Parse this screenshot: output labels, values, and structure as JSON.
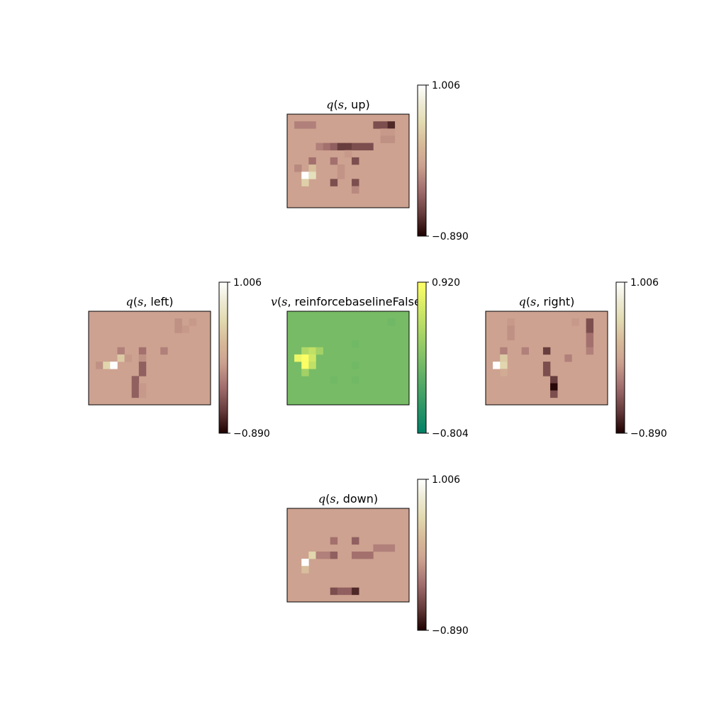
{
  "chart_data": {
    "type": "heatmap",
    "panels": [
      {
        "id": "up",
        "title": {
          "func": "q",
          "var": "s",
          "arg": "up"
        },
        "colormap": "pink",
        "colorbar": {
          "max_label": "1.006",
          "min_label": "−0.890",
          "vmin": -0.89,
          "vmax": 1.006
        },
        "rows": 13,
        "cols": 17,
        "background_value": 0.0,
        "cells": [
          {
            "r": 1,
            "c": 1,
            "v": -0.2
          },
          {
            "r": 1,
            "c": 2,
            "v": -0.2
          },
          {
            "r": 1,
            "c": 3,
            "v": -0.2
          },
          {
            "r": 1,
            "c": 12,
            "v": -0.5
          },
          {
            "r": 1,
            "c": 13,
            "v": -0.5
          },
          {
            "r": 1,
            "c": 14,
            "v": -0.7
          },
          {
            "r": 2,
            "c": 13,
            "v": -0.05
          },
          {
            "r": 2,
            "c": 14,
            "v": -0.05
          },
          {
            "r": 3,
            "c": 13,
            "v": -0.1
          },
          {
            "r": 3,
            "c": 14,
            "v": -0.1
          },
          {
            "r": 4,
            "c": 4,
            "v": -0.2
          },
          {
            "r": 4,
            "c": 5,
            "v": -0.3
          },
          {
            "r": 4,
            "c": 6,
            "v": -0.4
          },
          {
            "r": 4,
            "c": 7,
            "v": -0.6
          },
          {
            "r": 4,
            "c": 8,
            "v": -0.6
          },
          {
            "r": 4,
            "c": 9,
            "v": -0.5
          },
          {
            "r": 4,
            "c": 10,
            "v": -0.5
          },
          {
            "r": 4,
            "c": 11,
            "v": -0.5
          },
          {
            "r": 5,
            "c": 8,
            "v": -0.05
          },
          {
            "r": 6,
            "c": 3,
            "v": -0.3
          },
          {
            "r": 6,
            "c": 6,
            "v": -0.3
          },
          {
            "r": 6,
            "c": 9,
            "v": -0.5
          },
          {
            "r": 7,
            "c": 1,
            "v": -0.15
          },
          {
            "r": 7,
            "c": 3,
            "v": 0.3
          },
          {
            "r": 7,
            "c": 7,
            "v": -0.08
          },
          {
            "r": 8,
            "c": 2,
            "v": 1.0
          },
          {
            "r": 8,
            "c": 3,
            "v": 0.6
          },
          {
            "r": 8,
            "c": 7,
            "v": -0.08
          },
          {
            "r": 9,
            "c": 2,
            "v": 0.45
          },
          {
            "r": 9,
            "c": 6,
            "v": -0.5
          },
          {
            "r": 9,
            "c": 9,
            "v": -0.5
          },
          {
            "r": 10,
            "c": 9,
            "v": -0.15
          }
        ]
      },
      {
        "id": "left",
        "title": {
          "func": "q",
          "var": "s",
          "arg": "left"
        },
        "colormap": "pink",
        "colorbar": {
          "max_label": "1.006",
          "min_label": "−0.890",
          "vmin": -0.89,
          "vmax": 1.006
        },
        "rows": 13,
        "cols": 17,
        "background_value": 0.0,
        "cells": [
          {
            "r": 1,
            "c": 12,
            "v": -0.1
          },
          {
            "r": 1,
            "c": 14,
            "v": -0.05
          },
          {
            "r": 2,
            "c": 12,
            "v": -0.1
          },
          {
            "r": 2,
            "c": 13,
            "v": -0.05
          },
          {
            "r": 5,
            "c": 4,
            "v": -0.2
          },
          {
            "r": 5,
            "c": 7,
            "v": -0.3
          },
          {
            "r": 5,
            "c": 10,
            "v": -0.2
          },
          {
            "r": 6,
            "c": 4,
            "v": 0.4
          },
          {
            "r": 6,
            "c": 5,
            "v": -0.05
          },
          {
            "r": 6,
            "c": 7,
            "v": -0.1
          },
          {
            "r": 7,
            "c": 1,
            "v": -0.1
          },
          {
            "r": 7,
            "c": 2,
            "v": 0.5
          },
          {
            "r": 7,
            "c": 3,
            "v": 1.0
          },
          {
            "r": 7,
            "c": 7,
            "v": -0.4
          },
          {
            "r": 8,
            "c": 7,
            "v": -0.4
          },
          {
            "r": 9,
            "c": 6,
            "v": -0.4
          },
          {
            "r": 10,
            "c": 6,
            "v": -0.4
          },
          {
            "r": 11,
            "c": 6,
            "v": -0.4
          },
          {
            "r": 10,
            "c": 7,
            "v": -0.05
          },
          {
            "r": 11,
            "c": 7,
            "v": -0.05
          }
        ]
      },
      {
        "id": "value",
        "title": {
          "func": "v",
          "var": "s",
          "arg": "reinforcebaselineFalse"
        },
        "colormap": "summer",
        "colorbar": {
          "max_label": "0.920",
          "min_label": "−0.804",
          "vmin": -0.804,
          "vmax": 0.92
        },
        "rows": 13,
        "cols": 17,
        "background_value": 0.0,
        "cells": [
          {
            "r": 1,
            "c": 14,
            "v": -0.05
          },
          {
            "r": 5,
            "c": 2,
            "v": 0.4
          },
          {
            "r": 5,
            "c": 3,
            "v": 0.5
          },
          {
            "r": 5,
            "c": 4,
            "v": 0.3
          },
          {
            "r": 6,
            "c": 1,
            "v": 0.8
          },
          {
            "r": 6,
            "c": 2,
            "v": 0.9
          },
          {
            "r": 6,
            "c": 3,
            "v": 0.6
          },
          {
            "r": 7,
            "c": 2,
            "v": 0.9
          },
          {
            "r": 7,
            "c": 3,
            "v": 0.5
          },
          {
            "r": 8,
            "c": 2,
            "v": 0.3
          },
          {
            "r": 4,
            "c": 9,
            "v": -0.03
          },
          {
            "r": 7,
            "c": 9,
            "v": -0.03
          },
          {
            "r": 9,
            "c": 6,
            "v": -0.03
          },
          {
            "r": 9,
            "c": 9,
            "v": -0.03
          }
        ]
      },
      {
        "id": "right",
        "title": {
          "func": "q",
          "var": "s",
          "arg": "right"
        },
        "colormap": "pink",
        "colorbar": {
          "max_label": "1.006",
          "min_label": "−0.890",
          "vmin": -0.89,
          "vmax": 1.006
        },
        "rows": 13,
        "cols": 17,
        "background_value": 0.0,
        "cells": [
          {
            "r": 1,
            "c": 3,
            "v": -0.05
          },
          {
            "r": 1,
            "c": 12,
            "v": -0.05
          },
          {
            "r": 1,
            "c": 14,
            "v": -0.5
          },
          {
            "r": 2,
            "c": 3,
            "v": -0.1
          },
          {
            "r": 2,
            "c": 14,
            "v": -0.5
          },
          {
            "r": 3,
            "c": 3,
            "v": -0.1
          },
          {
            "r": 3,
            "c": 14,
            "v": -0.3
          },
          {
            "r": 4,
            "c": 14,
            "v": -0.3
          },
          {
            "r": 5,
            "c": 2,
            "v": -0.2
          },
          {
            "r": 5,
            "c": 5,
            "v": -0.2
          },
          {
            "r": 5,
            "c": 8,
            "v": -0.6
          },
          {
            "r": 5,
            "c": 14,
            "v": -0.2
          },
          {
            "r": 6,
            "c": 2,
            "v": 0.4
          },
          {
            "r": 6,
            "c": 11,
            "v": -0.2
          },
          {
            "r": 7,
            "c": 1,
            "v": 1.0
          },
          {
            "r": 7,
            "c": 2,
            "v": 0.5
          },
          {
            "r": 7,
            "c": 8,
            "v": -0.5
          },
          {
            "r": 8,
            "c": 2,
            "v": 0.1
          },
          {
            "r": 8,
            "c": 8,
            "v": -0.5
          },
          {
            "r": 9,
            "c": 9,
            "v": -0.6
          },
          {
            "r": 10,
            "c": 9,
            "v": -0.85
          },
          {
            "r": 11,
            "c": 9,
            "v": -0.5
          }
        ]
      },
      {
        "id": "down",
        "title": {
          "func": "q",
          "var": "s",
          "arg": "down"
        },
        "colormap": "pink",
        "colorbar": {
          "max_label": "1.006",
          "min_label": "−0.890",
          "vmin": -0.89,
          "vmax": 1.006
        },
        "rows": 13,
        "cols": 17,
        "background_value": 0.0,
        "cells": [
          {
            "r": 4,
            "c": 6,
            "v": -0.3
          },
          {
            "r": 4,
            "c": 9,
            "v": -0.4
          },
          {
            "r": 5,
            "c": 12,
            "v": -0.2
          },
          {
            "r": 5,
            "c": 13,
            "v": -0.2
          },
          {
            "r": 5,
            "c": 14,
            "v": -0.2
          },
          {
            "r": 6,
            "c": 3,
            "v": 0.5
          },
          {
            "r": 6,
            "c": 4,
            "v": -0.2
          },
          {
            "r": 6,
            "c": 5,
            "v": -0.2
          },
          {
            "r": 6,
            "c": 6,
            "v": -0.4
          },
          {
            "r": 6,
            "c": 9,
            "v": -0.3
          },
          {
            "r": 6,
            "c": 10,
            "v": -0.3
          },
          {
            "r": 6,
            "c": 11,
            "v": -0.3
          },
          {
            "r": 7,
            "c": 2,
            "v": 1.0
          },
          {
            "r": 8,
            "c": 2,
            "v": 0.3
          },
          {
            "r": 11,
            "c": 6,
            "v": -0.5
          },
          {
            "r": 11,
            "c": 7,
            "v": -0.4
          },
          {
            "r": 11,
            "c": 8,
            "v": -0.4
          },
          {
            "r": 11,
            "c": 9,
            "v": -0.7
          }
        ]
      }
    ]
  }
}
